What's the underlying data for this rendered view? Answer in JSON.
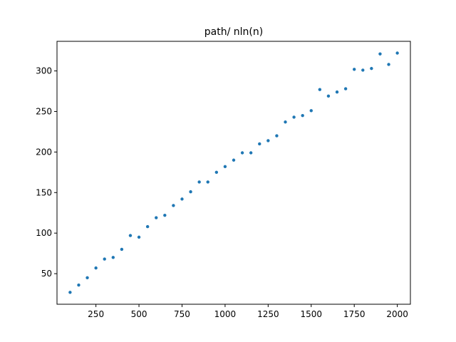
{
  "chart_data": {
    "type": "scatter",
    "title": "path/ nln(n)",
    "xlabel": "",
    "ylabel": "",
    "xlim": [
      24,
      2076
    ],
    "ylim": [
      12.3,
      336.5
    ],
    "xticks": [
      250,
      500,
      750,
      1000,
      1250,
      1500,
      1750,
      2000
    ],
    "yticks": [
      50,
      100,
      150,
      200,
      250,
      300
    ],
    "grid": false,
    "legend": "none",
    "marker_color": "#1f77b4",
    "series": [
      {
        "x": [
          100,
          150,
          200,
          250,
          300,
          350,
          400,
          450,
          500,
          550,
          600,
          650,
          700,
          750,
          800,
          850,
          900,
          950,
          1000,
          1050,
          1100,
          1150,
          1200,
          1250,
          1300,
          1350,
          1400,
          1450,
          1500,
          1550,
          1600,
          1650,
          1700,
          1750,
          1800,
          1850,
          1900,
          1950,
          2000
        ],
        "y": [
          27,
          36,
          45,
          57,
          68,
          70,
          80,
          97,
          95,
          108,
          119,
          122,
          134,
          142,
          151,
          163,
          163,
          175,
          182,
          190,
          199,
          199,
          210,
          214,
          220,
          237,
          243,
          245,
          251,
          277,
          269,
          274,
          278,
          302,
          301,
          303,
          321,
          308,
          322
        ]
      }
    ]
  }
}
